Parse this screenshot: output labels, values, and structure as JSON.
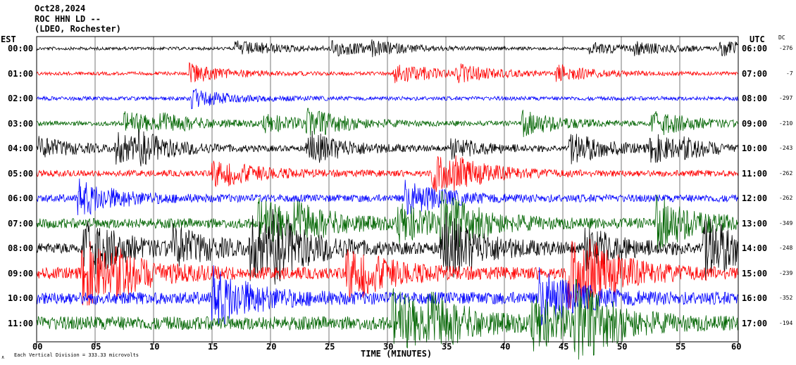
{
  "header": {
    "date": "Oct28,2024",
    "station": "ROC HHN LD --",
    "location": "(LDEO, Rochester)"
  },
  "left_axis_label": "EST",
  "right_axis_label": "UTC",
  "dc_label": "DC",
  "footer_note": "Each Vertical Division = 333.33 microvolts",
  "corner_mark": "∧",
  "chart_data": {
    "type": "line",
    "title": "",
    "xlabel": "TIME (MINUTES)",
    "ylabel": "",
    "xlim": [
      0,
      60
    ],
    "x_ticks": [
      "00",
      "05",
      "10",
      "15",
      "20",
      "25",
      "30",
      "35",
      "40",
      "45",
      "50",
      "55",
      "60"
    ],
    "grid": true,
    "series": [
      {
        "est": "00:00",
        "utc": "06:00",
        "dc": "-276",
        "color": "#000000",
        "amplitude": 0.25
      },
      {
        "est": "01:00",
        "utc": "07:00",
        "dc": "-7",
        "color": "#ff0000",
        "amplitude": 0.28
      },
      {
        "est": "02:00",
        "utc": "08:00",
        "dc": "-297",
        "color": "#0000ff",
        "amplitude": 0.32
      },
      {
        "est": "03:00",
        "utc": "09:00",
        "dc": "-210",
        "color": "#006400",
        "amplitude": 0.38
      },
      {
        "est": "04:00",
        "utc": "10:00",
        "dc": "-243",
        "color": "#000000",
        "amplitude": 0.42
      },
      {
        "est": "05:00",
        "utc": "11:00",
        "dc": "-262",
        "color": "#ff0000",
        "amplitude": 0.5
      },
      {
        "est": "06:00",
        "utc": "12:00",
        "dc": "-262",
        "color": "#0000ff",
        "amplitude": 0.6
      },
      {
        "est": "07:00",
        "utc": "13:00",
        "dc": "-349",
        "color": "#006400",
        "amplitude": 0.8
      },
      {
        "est": "08:00",
        "utc": "14:00",
        "dc": "-248",
        "color": "#000000",
        "amplitude": 0.85
      },
      {
        "est": "09:00",
        "utc": "15:00",
        "dc": "-239",
        "color": "#ff0000",
        "amplitude": 0.95
      },
      {
        "est": "10:00",
        "utc": "16:00",
        "dc": "-352",
        "color": "#0000ff",
        "amplitude": 1.0
      },
      {
        "est": "11:00",
        "utc": "17:00",
        "dc": "-194",
        "color": "#006400",
        "amplitude": 1.1
      }
    ]
  }
}
